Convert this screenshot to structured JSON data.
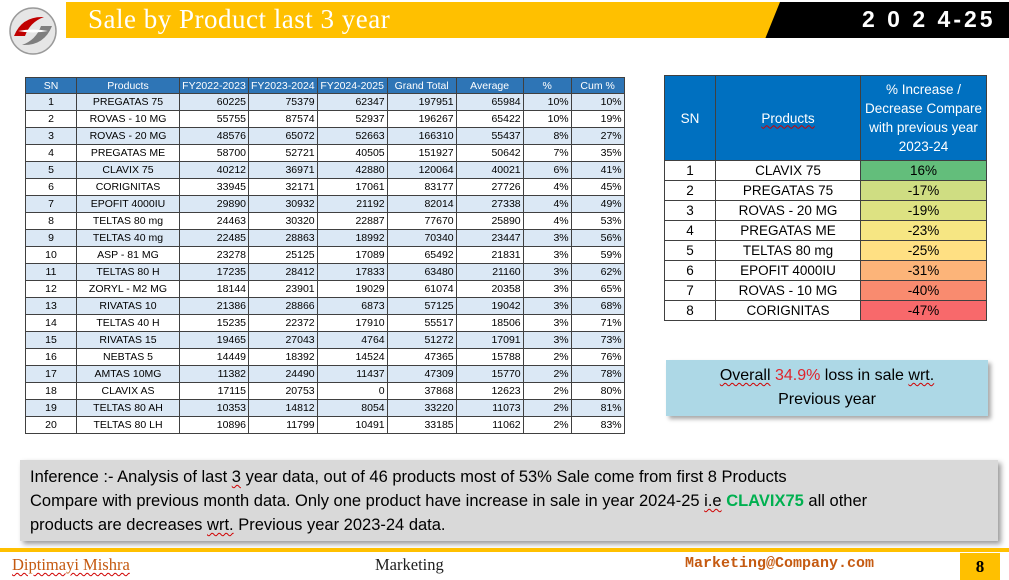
{
  "header": {
    "title": "Sale by Product last 3 year",
    "year": "2 0 2 4-25"
  },
  "sales_table": {
    "columns": [
      "SN",
      "Products",
      "FY2022-2023",
      "FY2023-2024",
      "FY2024-2025",
      "Grand Total",
      "Average",
      "%",
      "Cum %"
    ],
    "rows": [
      [
        "1",
        "PREGATAS 75",
        "60225",
        "75379",
        "62347",
        "197951",
        "65984",
        "10%",
        "10%"
      ],
      [
        "2",
        "ROVAS - 10 MG",
        "55755",
        "87574",
        "52937",
        "196267",
        "65422",
        "10%",
        "19%"
      ],
      [
        "3",
        "ROVAS - 20 MG",
        "48576",
        "65072",
        "52663",
        "166310",
        "55437",
        "8%",
        "27%"
      ],
      [
        "4",
        "PREGATAS ME",
        "58700",
        "52721",
        "40505",
        "151927",
        "50642",
        "7%",
        "35%"
      ],
      [
        "5",
        "CLAVIX 75",
        "40212",
        "36971",
        "42880",
        "120064",
        "40021",
        "6%",
        "41%"
      ],
      [
        "6",
        "CORIGNITAS",
        "33945",
        "32171",
        "17061",
        "83177",
        "27726",
        "4%",
        "45%"
      ],
      [
        "7",
        "EPOFIT 4000IU",
        "29890",
        "30932",
        "21192",
        "82014",
        "27338",
        "4%",
        "49%"
      ],
      [
        "8",
        "TELTAS 80 mg",
        "24463",
        "30320",
        "22887",
        "77670",
        "25890",
        "4%",
        "53%"
      ],
      [
        "9",
        "TELTAS 40 mg",
        "22485",
        "28863",
        "18992",
        "70340",
        "23447",
        "3%",
        "56%"
      ],
      [
        "10",
        "ASP - 81 MG",
        "23278",
        "25125",
        "17089",
        "65492",
        "21831",
        "3%",
        "59%"
      ],
      [
        "11",
        "TELTAS 80 H",
        "17235",
        "28412",
        "17833",
        "63480",
        "21160",
        "3%",
        "62%"
      ],
      [
        "12",
        "ZORYL - M2 MG",
        "18144",
        "23901",
        "19029",
        "61074",
        "20358",
        "3%",
        "65%"
      ],
      [
        "13",
        "RIVATAS 10",
        "21386",
        "28866",
        "6873",
        "57125",
        "19042",
        "3%",
        "68%"
      ],
      [
        "14",
        "TELTAS 40 H",
        "15235",
        "22372",
        "17910",
        "55517",
        "18506",
        "3%",
        "71%"
      ],
      [
        "15",
        "RIVATAS 15",
        "19465",
        "27043",
        "4764",
        "51272",
        "17091",
        "3%",
        "73%"
      ],
      [
        "16",
        "NEBTAS 5",
        "14449",
        "18392",
        "14524",
        "47365",
        "15788",
        "2%",
        "76%"
      ],
      [
        "17",
        "AMTAS 10MG",
        "11382",
        "24490",
        "11437",
        "47309",
        "15770",
        "2%",
        "78%"
      ],
      [
        "18",
        "CLAVIX AS",
        "17115",
        "20753",
        "0",
        "37868",
        "12623",
        "2%",
        "80%"
      ],
      [
        "19",
        "TELTAS 80 AH",
        "10353",
        "14812",
        "8054",
        "33220",
        "11073",
        "2%",
        "81%"
      ],
      [
        "20",
        "TELTAS 80 LH",
        "10896",
        "11799",
        "10491",
        "33185",
        "11062",
        "2%",
        "83%"
      ]
    ]
  },
  "comparison_table": {
    "col_sn": "SN",
    "col_products": "Products",
    "col_change_lines": [
      "% Increase /",
      "Decrease Compare",
      "with previous year",
      "2023-24"
    ],
    "rows": [
      {
        "sn": "1",
        "product": "CLAVIX 75",
        "change": "16%",
        "color": "#63be7b"
      },
      {
        "sn": "2",
        "product": "PREGATAS 75",
        "change": "-17%",
        "color": "#cfdd82"
      },
      {
        "sn": "3",
        "product": "ROVAS - 20 MG",
        "change": "-19%",
        "color": "#dde282"
      },
      {
        "sn": "4",
        "product": "PREGATAS ME",
        "change": "-23%",
        "color": "#f6e683"
      },
      {
        "sn": "5",
        "product": "TELTAS 80 mg",
        "change": "-25%",
        "color": "#ffe083"
      },
      {
        "sn": "6",
        "product": "EPOFIT 4000IU",
        "change": "-31%",
        "color": "#fcb479"
      },
      {
        "sn": "7",
        "product": "ROVAS - 10 MG",
        "change": "-40%",
        "color": "#f98b6f"
      },
      {
        "sn": "8",
        "product": "CORIGNITAS",
        "change": "-47%",
        "color": "#f8696b"
      }
    ]
  },
  "overall": {
    "w1": "Overall",
    "pct": "34.9%",
    "w2": "loss in sale",
    "w3": "wrt.",
    "line2": "Previous year"
  },
  "inference": {
    "l1_a": "Inference :- Analysis of last",
    "l1_b": "3",
    "l1_c": "year data, out of 46 products most of 53% Sale come from first 8 Products",
    "l2_a": "Compare with previous month data. Only one product have increase in sale in year 2024-25",
    "l2_b": "i.e",
    "l2_c": "CLAVIX75",
    "l2_d": "all other",
    "l3_a": "products are decreases",
    "l3_b": "wrt.",
    "l3_c": "Previous year 2023-24 data."
  },
  "footer": {
    "author": "Diptimayi Mishra",
    "department": "Marketing",
    "email": "Marketing@Company.com",
    "page": "8"
  },
  "colors": {
    "accent_yellow": "#ffc000",
    "table_header_blue": "#2e75b6",
    "highlight_red": "#e0242c",
    "highlight_green": "#00b050"
  }
}
